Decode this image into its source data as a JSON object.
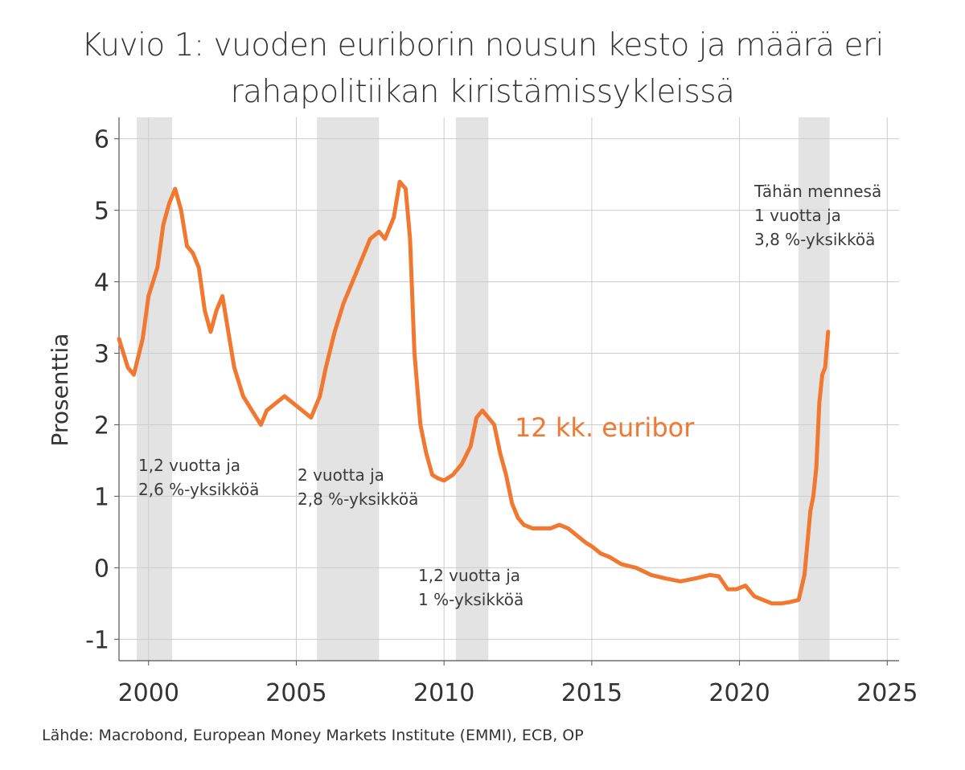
{
  "title_line1": "Kuvio 1: vuoden euriborin nousun kesto ja määrä eri",
  "title_line2": "rahapolitiikan kiristämissykleissä",
  "source": "Lähde: Macrobond, European Money Markets Institute (EMMI), ECB, OP",
  "chart_data": {
    "type": "line",
    "ylabel": "Prosenttia",
    "xlim": [
      1999.0,
      2025.4
    ],
    "ylim": [
      -1.3,
      6.3
    ],
    "x_ticks": [
      2000,
      2005,
      2010,
      2015,
      2020,
      2025
    ],
    "y_ticks": [
      -1,
      0,
      1,
      2,
      3,
      4,
      5,
      6
    ],
    "grid": true,
    "series": [
      {
        "name": "12 kk. euribor",
        "color": "#f07830",
        "x": [
          1999.0,
          1999.3,
          1999.5,
          1999.8,
          2000.0,
          2000.3,
          2000.5,
          2000.7,
          2000.9,
          2001.1,
          2001.3,
          2001.5,
          2001.7,
          2001.9,
          2002.1,
          2002.3,
          2002.5,
          2002.7,
          2002.9,
          2003.2,
          2003.5,
          2003.8,
          2004.0,
          2004.3,
          2004.6,
          2004.9,
          2005.2,
          2005.5,
          2005.8,
          2006.0,
          2006.3,
          2006.6,
          2006.9,
          2007.2,
          2007.5,
          2007.8,
          2008.0,
          2008.3,
          2008.5,
          2008.7,
          2008.85,
          2009.0,
          2009.2,
          2009.4,
          2009.6,
          2009.8,
          2010.0,
          2010.3,
          2010.6,
          2010.9,
          2011.1,
          2011.3,
          2011.5,
          2011.7,
          2011.9,
          2012.1,
          2012.3,
          2012.5,
          2012.7,
          2013.0,
          2013.3,
          2013.6,
          2013.9,
          2014.2,
          2014.5,
          2014.8,
          2015.0,
          2015.3,
          2015.6,
          2016.0,
          2016.5,
          2017.0,
          2017.5,
          2018.0,
          2018.5,
          2019.0,
          2019.3,
          2019.6,
          2019.9,
          2020.2,
          2020.5,
          2020.8,
          2021.1,
          2021.4,
          2021.7,
          2022.0,
          2022.2,
          2022.4,
          2022.5,
          2022.6,
          2022.7,
          2022.8,
          2022.9,
          2023.0
        ],
        "y": [
          3.2,
          2.8,
          2.7,
          3.2,
          3.8,
          4.2,
          4.8,
          5.1,
          5.3,
          5.0,
          4.5,
          4.4,
          4.2,
          3.6,
          3.3,
          3.6,
          3.8,
          3.3,
          2.8,
          2.4,
          2.2,
          2.0,
          2.2,
          2.3,
          2.4,
          2.3,
          2.2,
          2.1,
          2.4,
          2.8,
          3.3,
          3.7,
          4.0,
          4.3,
          4.6,
          4.7,
          4.6,
          4.9,
          5.4,
          5.3,
          4.6,
          3.0,
          2.0,
          1.6,
          1.3,
          1.25,
          1.22,
          1.3,
          1.45,
          1.7,
          2.1,
          2.2,
          2.1,
          2.0,
          1.6,
          1.3,
          0.9,
          0.7,
          0.6,
          0.55,
          0.55,
          0.55,
          0.6,
          0.55,
          0.45,
          0.35,
          0.3,
          0.2,
          0.15,
          0.05,
          0.0,
          -0.1,
          -0.15,
          -0.19,
          -0.15,
          -0.1,
          -0.12,
          -0.3,
          -0.3,
          -0.25,
          -0.4,
          -0.45,
          -0.5,
          -0.5,
          -0.48,
          -0.45,
          -0.1,
          0.8,
          1.0,
          1.4,
          2.3,
          2.7,
          2.8,
          3.3
        ]
      }
    ],
    "cycles": [
      {
        "start": 1999.6,
        "end": 2000.8,
        "label_line1": "1,2 vuotta ja",
        "label_line2": "2,6 %-yksikköä"
      },
      {
        "start": 2005.7,
        "end": 2007.8,
        "label_line1": "2 vuotta ja",
        "label_line2": "2,8 %-yksikköä"
      },
      {
        "start": 2010.4,
        "end": 2011.5,
        "label_line1": "1,2 vuotta ja",
        "label_line2": "1 %-yksikköä"
      },
      {
        "start": 2022.0,
        "end": 2023.05,
        "label_line0": "Tähän mennesä",
        "label_line1": "1 vuotta ja",
        "label_line2": "3,8 %-yksikköä"
      }
    ],
    "series_label": "12 kk. euribor"
  }
}
